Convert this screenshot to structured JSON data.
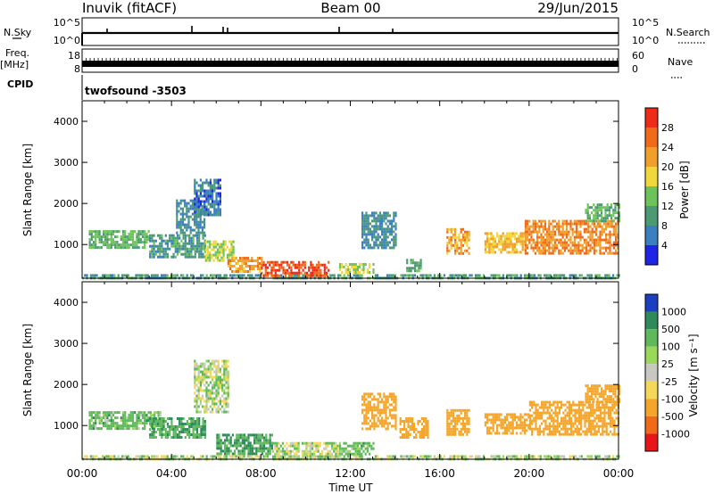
{
  "header": {
    "station": "Inuvik (fitACF)",
    "beam": "Beam 00",
    "date": "29/Jun/2015"
  },
  "top_panels": {
    "nsky_label": "N.Sky",
    "nsky_ticks": [
      "10^5",
      "10^0"
    ],
    "nsearch_label": "N.Search",
    "nsearch_ticks": [
      "10^5",
      "10^0"
    ],
    "freq_label": "Freq.",
    "freq_unit": "[MHz]",
    "freq_ticks": [
      "18",
      "8"
    ],
    "nave_label": "Nave",
    "nave_ticks": [
      "60",
      "0"
    ],
    "cpid_label": "CPID",
    "cpid_value": "twofsound -3503"
  },
  "x_axis": {
    "label": "Time UT",
    "ticks": [
      "00:00",
      "04:00",
      "08:00",
      "12:00",
      "16:00",
      "20:00",
      "00:00"
    ],
    "range_hours": [
      0,
      24
    ]
  },
  "power_panel": {
    "ylabel": "Slant Range [km]",
    "yticks": [
      "1000",
      "2000",
      "3000",
      "4000"
    ],
    "colorbar_label": "Power [dB]",
    "colorbar_ticks": [
      "4",
      "8",
      "12",
      "16",
      "20",
      "24",
      "28"
    ],
    "colors": [
      "#1f24e6",
      "#3a7fc0",
      "#4c9a74",
      "#6ec25a",
      "#f0d83a",
      "#f0a02a",
      "#f06a1a",
      "#ee2a18"
    ]
  },
  "velocity_panel": {
    "ylabel": "Slant Range [km]",
    "yticks": [
      "1000",
      "2000",
      "3000",
      "4000"
    ],
    "colorbar_label": "Velocity [m s⁻¹]",
    "colorbar_ticks": [
      "1000",
      "500",
      "100",
      "25",
      "-25",
      "-100",
      "-500",
      "-1000"
    ],
    "colors": [
      "#1c3fbf",
      "#2e8a5a",
      "#5fb85a",
      "#9ad85a",
      "#c8c8c0",
      "#f5d85a",
      "#f5a62a",
      "#f06a1a",
      "#e8161a"
    ]
  },
  "chart_data": {
    "type": "heatmap",
    "x_unit": "hours UT",
    "y_unit": "slant range km",
    "ylim": [
      180,
      4500
    ],
    "xlim": [
      0,
      24
    ],
    "power_regions": [
      {
        "x": [
          0.0,
          24.0
        ],
        "y": [
          200,
          280
        ],
        "value": 10
      },
      {
        "x": [
          0.3,
          3.0
        ],
        "y": [
          950,
          1350
        ],
        "value": 12
      },
      {
        "x": [
          3.0,
          5.5
        ],
        "y": [
          700,
          1250
        ],
        "value": 10
      },
      {
        "x": [
          4.2,
          5.5
        ],
        "y": [
          1300,
          2100
        ],
        "value": 8
      },
      {
        "x": [
          5.0,
          6.2
        ],
        "y": [
          1700,
          2600
        ],
        "value": 6
      },
      {
        "x": [
          5.5,
          6.8
        ],
        "y": [
          600,
          1100
        ],
        "value": 16
      },
      {
        "x": [
          6.5,
          8.0
        ],
        "y": [
          350,
          700
        ],
        "value": 22
      },
      {
        "x": [
          8.0,
          11.0
        ],
        "y": [
          250,
          600
        ],
        "value": 28
      },
      {
        "x": [
          11.5,
          13.0
        ],
        "y": [
          350,
          550
        ],
        "value": 16
      },
      {
        "x": [
          12.5,
          14.0
        ],
        "y": [
          900,
          1800
        ],
        "value": 8
      },
      {
        "x": [
          14.5,
          15.2
        ],
        "y": [
          350,
          650
        ],
        "value": 12
      },
      {
        "x": [
          16.3,
          17.3
        ],
        "y": [
          800,
          1400
        ],
        "value": 22
      },
      {
        "x": [
          18.0,
          19.8
        ],
        "y": [
          800,
          1300
        ],
        "value": 20
      },
      {
        "x": [
          19.8,
          24.0
        ],
        "y": [
          800,
          1600
        ],
        "value": 24
      },
      {
        "x": [
          22.5,
          24.0
        ],
        "y": [
          1600,
          2000
        ],
        "value": 12
      }
    ],
    "velocity_regions": [
      {
        "x": [
          0.0,
          24.0
        ],
        "y": [
          200,
          280
        ],
        "value": 0
      },
      {
        "x": [
          0.3,
          3.5
        ],
        "y": [
          950,
          1350
        ],
        "value": 50
      },
      {
        "x": [
          3.0,
          5.5
        ],
        "y": [
          700,
          1200
        ],
        "value": 100
      },
      {
        "x": [
          5.0,
          6.5
        ],
        "y": [
          1300,
          2600
        ],
        "value": 0
      },
      {
        "x": [
          6.0,
          8.5
        ],
        "y": [
          300,
          800
        ],
        "value": 100
      },
      {
        "x": [
          8.5,
          11.5
        ],
        "y": [
          250,
          600
        ],
        "value": 0
      },
      {
        "x": [
          11.5,
          13.0
        ],
        "y": [
          300,
          600
        ],
        "value": 50
      },
      {
        "x": [
          12.5,
          14.0
        ],
        "y": [
          900,
          1800
        ],
        "value": -200
      },
      {
        "x": [
          14.2,
          15.5
        ],
        "y": [
          700,
          1200
        ],
        "value": -300
      },
      {
        "x": [
          16.3,
          17.3
        ],
        "y": [
          800,
          1400
        ],
        "value": -300
      },
      {
        "x": [
          18.0,
          20.0
        ],
        "y": [
          800,
          1300
        ],
        "value": -200
      },
      {
        "x": [
          20.0,
          24.0
        ],
        "y": [
          800,
          1600
        ],
        "value": -400
      },
      {
        "x": [
          22.5,
          24.0
        ],
        "y": [
          1600,
          2000
        ],
        "value": -200
      }
    ]
  }
}
